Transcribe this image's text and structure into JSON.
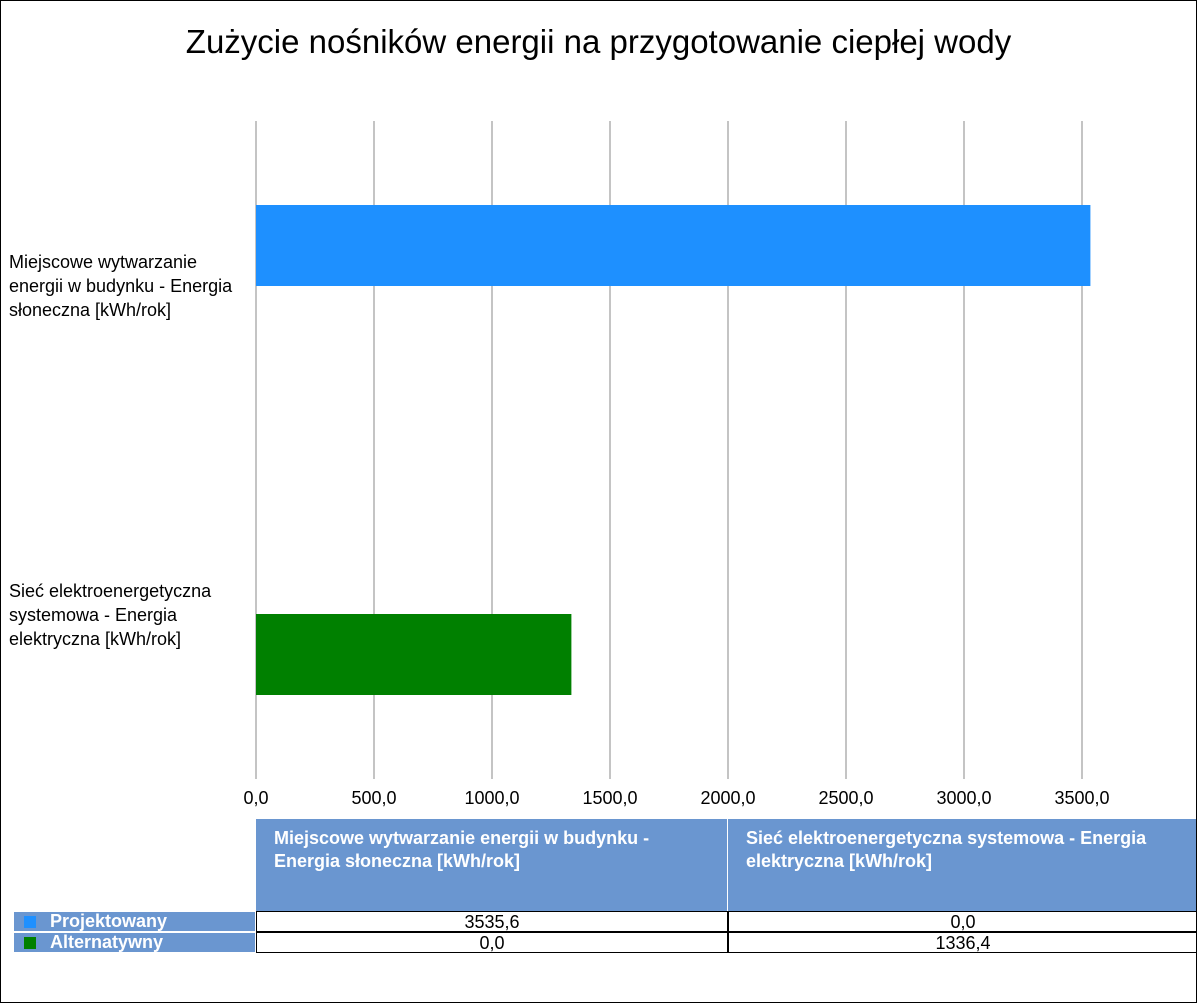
{
  "chart_data": {
    "type": "bar",
    "orientation": "horizontal",
    "title": "Zużycie nośników energii na przygotowanie ciepłej wody",
    "categories": [
      "Miejscowe wytwarzanie energii w budynku - Energia słoneczna [kWh/rok]",
      "Sieć elektroenergetyczna systemowa - Energia elektryczna [kWh/rok]"
    ],
    "series": [
      {
        "name": "Projektowany",
        "color": "#1e90ff",
        "values": [
          3535.6,
          0.0
        ],
        "value_labels": [
          "3535,6",
          "0,0"
        ]
      },
      {
        "name": "Alternatywny",
        "color": "#008000",
        "values": [
          0.0,
          1336.4
        ],
        "value_labels": [
          "0,0",
          "1336,4"
        ]
      }
    ],
    "xlim": [
      0,
      4000
    ],
    "xticks": [
      {
        "value": 0,
        "label": "0,0"
      },
      {
        "value": 500,
        "label": "500,0"
      },
      {
        "value": 1000,
        "label": "1000,0"
      },
      {
        "value": 1500,
        "label": "1500,0"
      },
      {
        "value": 2000,
        "label": "2000,0"
      },
      {
        "value": 2500,
        "label": "2500,0"
      },
      {
        "value": 3000,
        "label": "3000,0"
      },
      {
        "value": 3500,
        "label": "3500,0"
      }
    ],
    "grid": true
  }
}
